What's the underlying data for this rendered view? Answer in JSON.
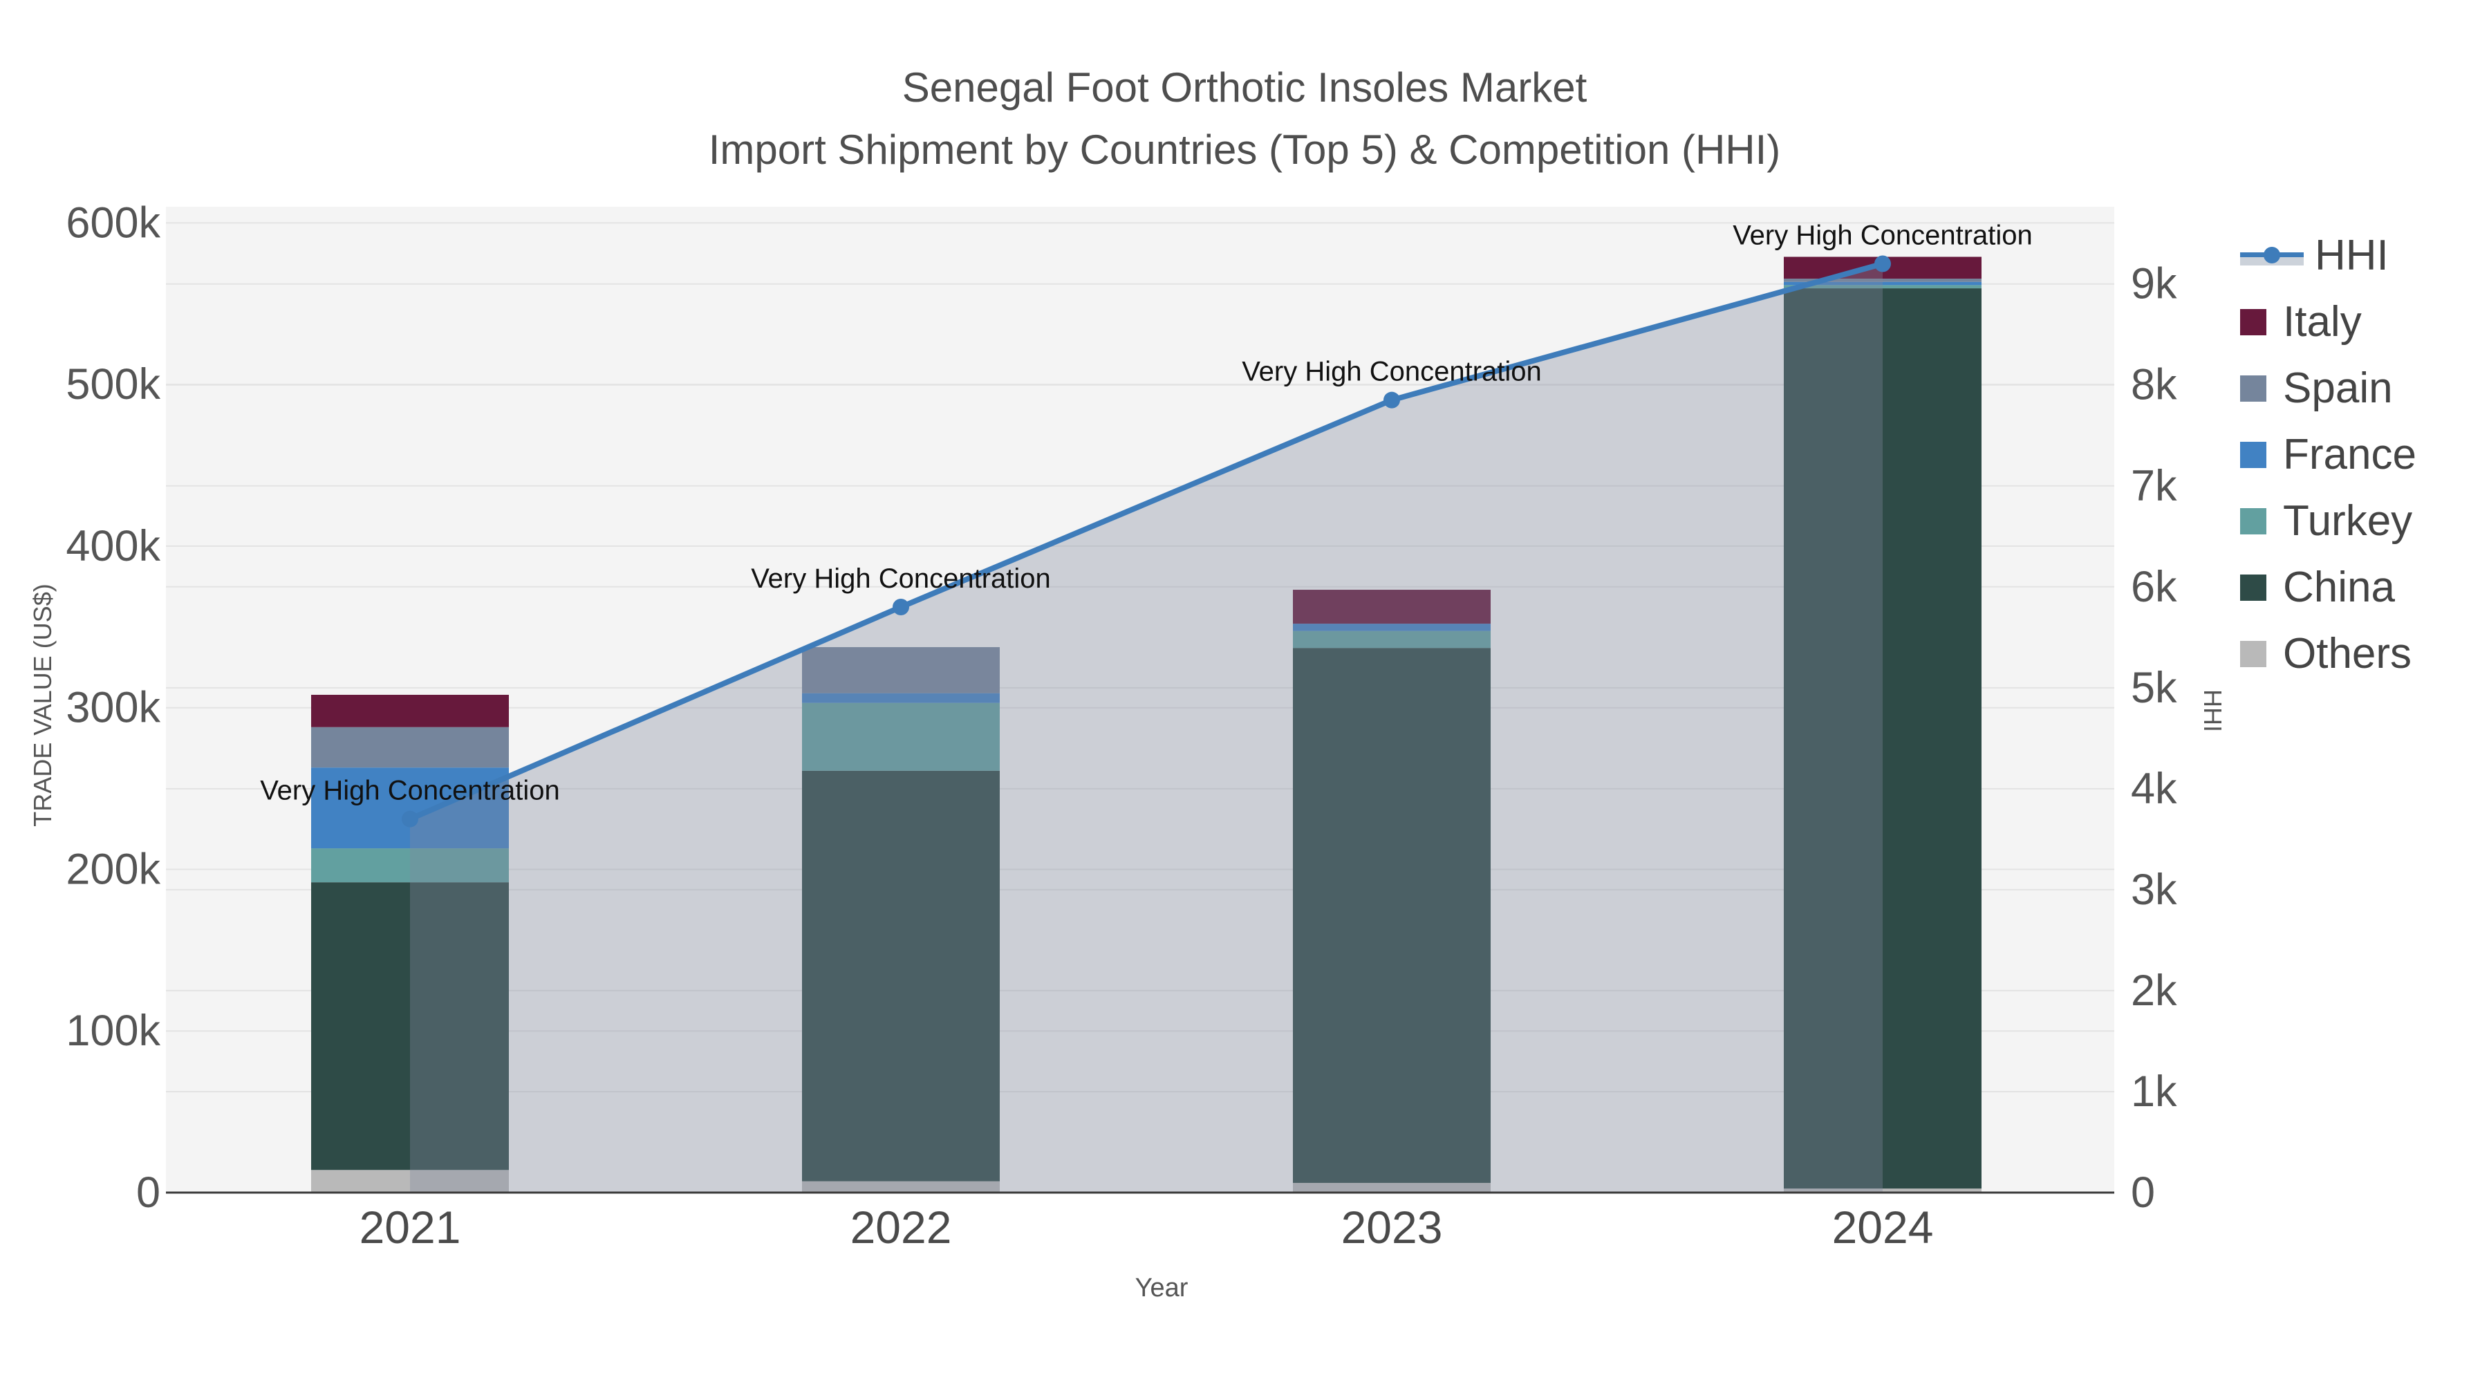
{
  "title": {
    "line1": "Senegal Foot Orthotic Insoles Market",
    "line2": "Import Shipment by Countries (Top 5) & Competition (HHI)"
  },
  "axes": {
    "x": {
      "title": "Year",
      "categories": [
        "2021",
        "2022",
        "2023",
        "2024"
      ]
    },
    "y_left": {
      "title": "TRADE VALUE (US$)",
      "tick_labels": [
        "0",
        "100k",
        "200k",
        "300k",
        "400k",
        "500k",
        "600k"
      ],
      "tick_values": [
        0,
        100000,
        200000,
        300000,
        400000,
        500000,
        600000
      ],
      "range": [
        0,
        610000
      ]
    },
    "y_right": {
      "title": "HHI",
      "tick_labels": [
        "0",
        "1k",
        "2k",
        "3k",
        "4k",
        "5k",
        "6k",
        "7k",
        "8k",
        "9k"
      ],
      "tick_values": [
        0,
        1000,
        2000,
        3000,
        4000,
        5000,
        6000,
        7000,
        8000,
        9000
      ],
      "range": [
        0,
        9765
      ]
    }
  },
  "legend": {
    "items": [
      {
        "label": "HHI",
        "type": "line",
        "color": "#3e7cba"
      },
      {
        "label": "Italy",
        "type": "box",
        "color": "#67193c"
      },
      {
        "label": "Spain",
        "type": "box",
        "color": "#75859c"
      },
      {
        "label": "France",
        "type": "box",
        "color": "#4182c3"
      },
      {
        "label": "Turkey",
        "type": "box",
        "color": "#62a0a0"
      },
      {
        "label": "China",
        "type": "box",
        "color": "#2e4b47"
      },
      {
        "label": "Others",
        "type": "box",
        "color": "#b9b9b9"
      }
    ]
  },
  "chart_data": {
    "type": "bar",
    "subtype": "stacked-bars-with-overlaid-line",
    "title": "Senegal Foot Orthotic Insoles Market — Import Shipment by Countries (Top 5) & Competition (HHI)",
    "categories": [
      "2021",
      "2022",
      "2023",
      "2024"
    ],
    "xlabel": "Year",
    "ylabel_left": "TRADE VALUE (US$)",
    "ylabel_right": "HHI",
    "ylim_left": [
      0,
      610000
    ],
    "ylim_right": [
      0,
      9765
    ],
    "grid": true,
    "legend_position": "right",
    "series": [
      {
        "name": "Others",
        "color": "#b9b9b9",
        "values": [
          14000,
          7000,
          6000,
          2500
        ]
      },
      {
        "name": "China",
        "color": "#2e4b47",
        "values": [
          178000,
          254000,
          331000,
          557000
        ]
      },
      {
        "name": "Turkey",
        "color": "#62a0a0",
        "values": [
          21000,
          42000,
          10500,
          2000
        ]
      },
      {
        "name": "France",
        "color": "#4182c3",
        "values": [
          50000,
          6000,
          4500,
          2000
        ]
      },
      {
        "name": "Spain",
        "color": "#75859c",
        "values": [
          25000,
          28500,
          0,
          2000
        ]
      },
      {
        "name": "Italy",
        "color": "#67193c",
        "values": [
          20000,
          0,
          21000,
          13500
        ]
      }
    ],
    "bar_totals": [
      308000,
      337500,
      373000,
      579000
    ],
    "line_series": {
      "name": "HHI",
      "axis": "right",
      "color": "#3e7cba",
      "fill_color": "rgba(128,138,158,0.35)",
      "values": [
        3700,
        5800,
        7850,
        9200
      ]
    },
    "annotations": [
      {
        "category": "2021",
        "text": "Very High Concentration"
      },
      {
        "category": "2022",
        "text": "Very High Concentration"
      },
      {
        "category": "2023",
        "text": "Very High Concentration"
      },
      {
        "category": "2024",
        "text": "Very High Concentration"
      }
    ]
  },
  "colors": {
    "plot_bg": "#f4f4f4",
    "grid": "#e3e3e3",
    "axis_line": "#3a3a3a",
    "tick_text": "#555555",
    "annotation_text": "#111111"
  }
}
